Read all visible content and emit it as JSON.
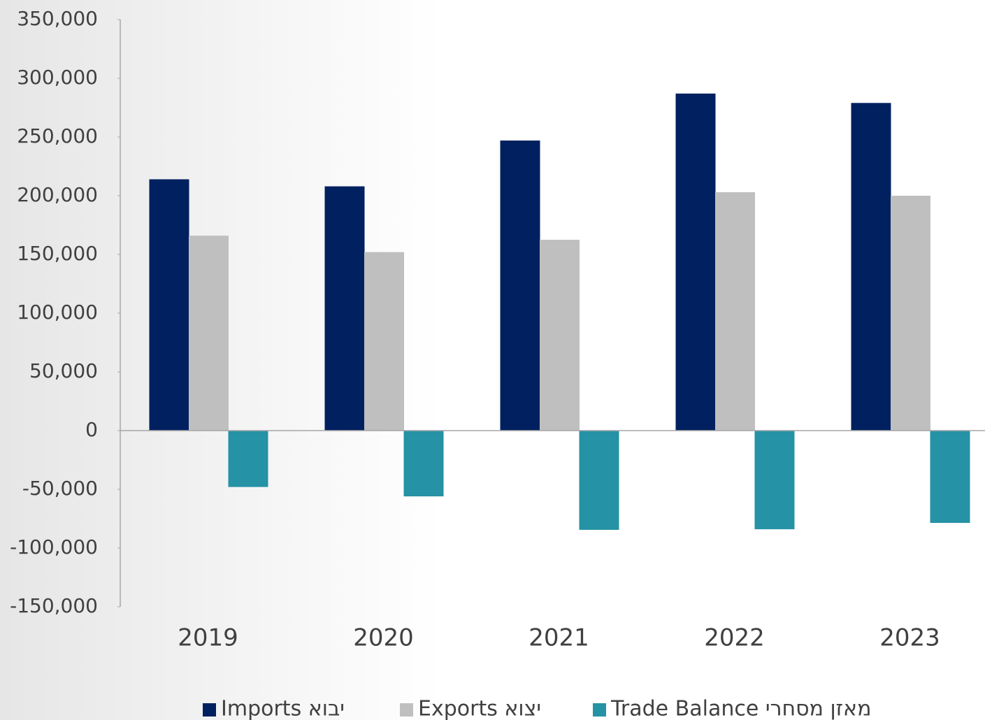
{
  "chart_data": {
    "type": "bar",
    "categories": [
      "2019",
      "2020",
      "2021",
      "2022",
      "2023"
    ],
    "series": [
      {
        "name": "Imports יבוא",
        "color": "#002060",
        "values": [
          214000,
          208000,
          247000,
          287000,
          279000
        ]
      },
      {
        "name": "Exports יצוא",
        "color": "#bfbfbf",
        "values": [
          166000,
          152000,
          162500,
          203000,
          200000
        ]
      },
      {
        "name": "Trade Balance מאזן מסחרי",
        "color": "#2592a5",
        "values": [
          -48000,
          -56000,
          -84500,
          -84000,
          -78600
        ]
      }
    ],
    "ylim": [
      -150000,
      350000
    ],
    "yticks": [
      {
        "value": -150000,
        "label": "-150,000"
      },
      {
        "value": -100000,
        "label": "-100,000"
      },
      {
        "value": -50000,
        "label": "-50,000"
      },
      0,
      {
        "value": 50000,
        "label": "50,000"
      },
      {
        "value": 100000,
        "label": "100,000"
      },
      {
        "value": 150000,
        "label": "150,000"
      },
      {
        "value": 200000,
        "label": "200,000"
      },
      {
        "value": 250000,
        "label": "250,000"
      },
      {
        "value": 300000,
        "label": "300,000"
      },
      {
        "value": 350000,
        "label": "350,000"
      }
    ],
    "grid": false,
    "legend": "bottom"
  }
}
